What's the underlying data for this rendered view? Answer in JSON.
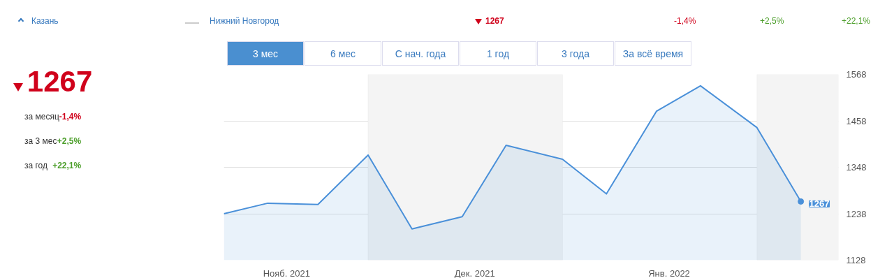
{
  "chart_data": {
    "type": "area",
    "x": [
      "2021-11-08",
      "2021-11-15",
      "2021-11-23",
      "2021-12-01",
      "2021-12-08",
      "2021-12-16",
      "2021-12-23",
      "2022-01-01",
      "2022-01-08",
      "2022-01-16",
      "2022-01-23",
      "2022-02-01",
      "2022-02-08"
    ],
    "series": [
      {
        "color": "#4a90d9",
        "values": [
          1238,
          1263,
          1260,
          1377,
          1202,
          1231,
          1400,
          1367,
          1285,
          1481,
          1541,
          1442,
          1267
        ],
        "value_labels": [
          null,
          null,
          null,
          null,
          null,
          null,
          null,
          null,
          null,
          null,
          null,
          null,
          "1267"
        ]
      }
    ],
    "xlim": [
      "2021-11-08",
      "2022-02-14"
    ],
    "xticks": [
      {
        "value": "2021-11-18",
        "label": "Нояб. 2021"
      },
      {
        "value": "2021-12-18",
        "label": "Дек. 2021"
      },
      {
        "value": "2022-01-18",
        "label": "Янв. 2022"
      }
    ],
    "ylim": [
      1128,
      1568
    ],
    "yticks": [
      1128,
      1238,
      1348,
      1458,
      1568
    ],
    "grid": "y",
    "bands": [
      {
        "axis": "x",
        "from": "2021-12-01",
        "to": "2022-01-01",
        "color": "#f4f4f4"
      },
      {
        "axis": "x",
        "from": "2022-02-01",
        "to": "2022-02-14",
        "color": "#f4f4f4"
      }
    ],
    "annotations": [
      "Казань",
      "Нижний Новгород",
      "1267",
      "-1,4%",
      "+2,5%",
      "+22,1%",
      "1267",
      "за месяц",
      "-1,4%",
      "за 3 мес",
      "+2,5%",
      "за год",
      "+22,1%",
      "3 мес",
      "6 мес",
      "С нач. года",
      "1 год",
      "3 года",
      "За всё время"
    ]
  }
}
